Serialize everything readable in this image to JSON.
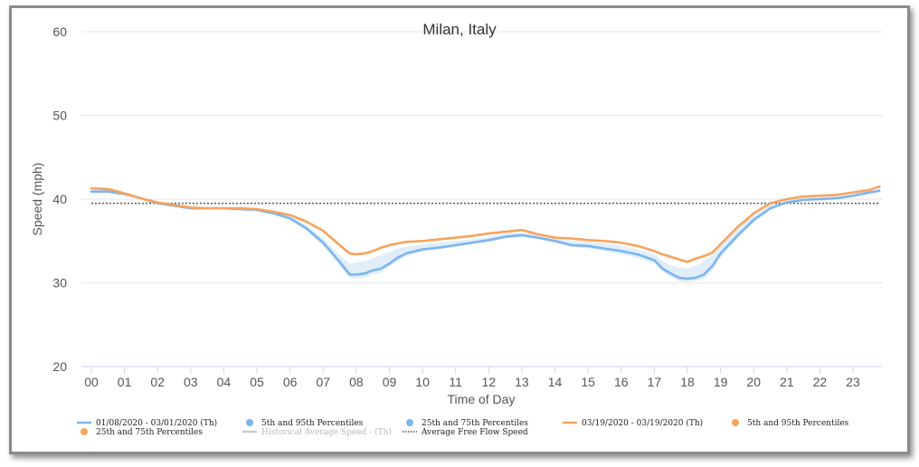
{
  "chart_data": {
    "type": "line",
    "title": "Milan, Italy",
    "xlabel": "Time of Day",
    "ylabel": "Speed (mph)",
    "ylim": [
      20,
      60
    ],
    "xlim": [
      -0.3,
      23.9
    ],
    "yticks": [
      "20",
      "30",
      "40",
      "50",
      "60"
    ],
    "xticks": [
      "00",
      "01",
      "02",
      "03",
      "04",
      "05",
      "06",
      "07",
      "08",
      "09",
      "10",
      "11",
      "12",
      "13",
      "14",
      "15",
      "16",
      "17",
      "18",
      "19",
      "20",
      "21",
      "22",
      "23"
    ],
    "grid": true,
    "legend_position": "bottom",
    "reference_line": {
      "name": "Average Free Flow Speed",
      "value": 39.5
    },
    "x": [
      0,
      0.5,
      1,
      1.5,
      2,
      2.5,
      3,
      3.5,
      4,
      4.5,
      5,
      5.5,
      6,
      6.5,
      7,
      7.5,
      7.8,
      8,
      8.25,
      8.5,
      8.75,
      9,
      9.25,
      9.5,
      10,
      10.5,
      11,
      11.5,
      12,
      12.5,
      13,
      13.5,
      14,
      14.5,
      15,
      15.5,
      16,
      16.5,
      17,
      17.25,
      17.5,
      17.75,
      18,
      18.25,
      18.5,
      18.75,
      19,
      19.5,
      20,
      20.5,
      21,
      21.5,
      22,
      22.5,
      23,
      23.5,
      23.8
    ],
    "series": [
      {
        "name": "01/08/2020 - 03/01/2020 (Th)",
        "color": "#7cb5ec",
        "values": [
          40.9,
          40.9,
          40.6,
          40.1,
          39.5,
          39.2,
          38.9,
          38.9,
          38.9,
          38.8,
          38.7,
          38.3,
          37.7,
          36.5,
          34.8,
          32.5,
          31.0,
          31.0,
          31.1,
          31.5,
          31.7,
          32.3,
          33.0,
          33.5,
          34.0,
          34.2,
          34.5,
          34.8,
          35.1,
          35.5,
          35.7,
          35.4,
          35.0,
          34.5,
          34.4,
          34.1,
          33.8,
          33.4,
          32.7,
          31.7,
          31.1,
          30.6,
          30.5,
          30.6,
          31.0,
          32.0,
          33.5,
          35.6,
          37.5,
          38.9,
          39.6,
          39.9,
          40.0,
          40.1,
          40.4,
          40.8,
          41.0
        ]
      },
      {
        "name": "03/19/2020 - 03/19/2020 (Th)",
        "color": "#f7a35c",
        "values": [
          41.3,
          41.2,
          40.7,
          40.1,
          39.6,
          39.3,
          39.0,
          38.9,
          38.9,
          38.9,
          38.8,
          38.5,
          38.1,
          37.3,
          36.2,
          34.5,
          33.5,
          33.4,
          33.5,
          33.8,
          34.2,
          34.5,
          34.7,
          34.9,
          35.0,
          35.2,
          35.4,
          35.6,
          35.9,
          36.1,
          36.3,
          35.8,
          35.4,
          35.3,
          35.1,
          35.0,
          34.8,
          34.4,
          33.8,
          33.4,
          33.1,
          32.8,
          32.5,
          32.9,
          33.2,
          33.6,
          34.6,
          36.6,
          38.3,
          39.5,
          40.0,
          40.3,
          40.4,
          40.5,
          40.8,
          41.1,
          41.5
        ]
      }
    ],
    "band": {
      "name": "25th and 75th Percentiles",
      "lower": [
        40.8,
        40.8,
        40.5,
        40.0,
        39.4,
        39.1,
        38.8,
        38.8,
        38.8,
        38.7,
        38.6,
        38.2,
        37.5,
        36.2,
        34.4,
        32.0,
        30.6,
        30.5,
        30.6,
        31.0,
        31.2,
        31.9,
        32.6,
        33.2,
        33.7,
        34.0,
        34.3,
        34.6,
        34.9,
        35.3,
        35.5,
        35.2,
        34.8,
        34.3,
        34.1,
        33.8,
        33.4,
        33.0,
        32.3,
        31.3,
        30.7,
        30.2,
        30.1,
        30.2,
        30.5,
        31.5,
        33.0,
        35.2,
        37.2,
        38.7,
        39.5,
        39.8,
        39.9,
        40.0,
        40.3,
        40.7,
        40.9
      ],
      "upper": [
        41.1,
        41.1,
        40.7,
        40.2,
        39.6,
        39.3,
        39.0,
        39.0,
        39.0,
        38.9,
        38.8,
        38.5,
        38.0,
        36.9,
        35.3,
        33.3,
        32.3,
        32.4,
        32.6,
        32.9,
        33.3,
        33.7,
        34.1,
        34.3,
        34.6,
        34.8,
        35.0,
        35.2,
        35.5,
        35.9,
        36.0,
        35.7,
        35.3,
        35.0,
        34.9,
        34.7,
        34.4,
        34.0,
        33.4,
        32.6,
        32.1,
        31.8,
        31.7,
        32.0,
        32.6,
        33.3,
        34.6,
        36.4,
        38.1,
        39.3,
        39.8,
        40.1,
        40.2,
        40.3,
        40.6,
        41.0,
        41.2
      ]
    }
  },
  "legend": {
    "items": [
      {
        "label": "01/08/2020 - 03/01/2020 (Th)",
        "kind": "line",
        "color": "#7cb5ec",
        "muted": false
      },
      {
        "label": "5th and 95th Percentiles",
        "kind": "dot",
        "color": "#7cb5ec",
        "muted": false
      },
      {
        "label": "25th and 75th Percentiles",
        "kind": "dot",
        "color": "#7cb5ec",
        "muted": false
      },
      {
        "label": "03/19/2020 - 03/19/2020 (Th)",
        "kind": "line",
        "color": "#f7a35c",
        "muted": false
      },
      {
        "label": "5th and 95th Percentiles",
        "kind": "dot",
        "color": "#f7a35c",
        "muted": false
      },
      {
        "label": "25th and 75th Percentiles",
        "kind": "dot",
        "color": "#f7a35c",
        "muted": false
      },
      {
        "label": "Historical Average Speed - (Th)",
        "kind": "line",
        "color": "#cccccc",
        "muted": true
      },
      {
        "label": "Average Free Flow Speed",
        "kind": "dotted",
        "color": "#555555",
        "muted": false
      }
    ]
  }
}
